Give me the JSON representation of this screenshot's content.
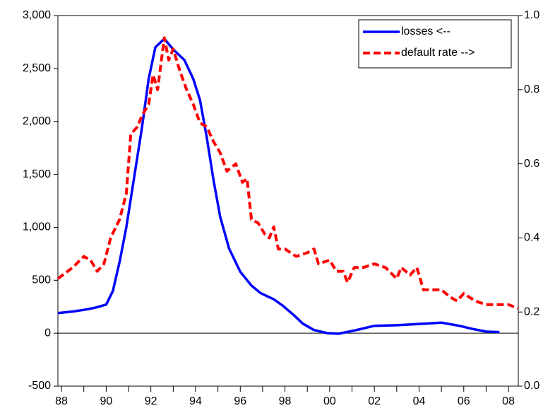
{
  "chart_data": {
    "type": "line",
    "xlim": [
      1987.84,
      2008.44
    ],
    "xticks": [
      {
        "value": 1988,
        "label": "88"
      },
      {
        "value": 1990,
        "label": "90"
      },
      {
        "value": 1992,
        "label": "92"
      },
      {
        "value": 1994,
        "label": "94"
      },
      {
        "value": 1996,
        "label": "96"
      },
      {
        "value": 1998,
        "label": "98"
      },
      {
        "value": 2000,
        "label": "00"
      },
      {
        "value": 2002,
        "label": "02"
      },
      {
        "value": 2004,
        "label": "04"
      },
      {
        "value": 2006,
        "label": "06"
      },
      {
        "value": 2008,
        "label": "08"
      }
    ],
    "xminorticks": [
      1989,
      1991,
      1993,
      1995,
      1997,
      1999,
      2001,
      2003,
      2005,
      2007
    ],
    "ylim": [
      -500,
      3000
    ],
    "yticks": [
      -500,
      0,
      500,
      {
        "value": 1000,
        "label": "1,000"
      },
      {
        "value": 1500,
        "label": "1,500"
      },
      {
        "value": 2000,
        "label": "2,000"
      },
      {
        "value": 2500,
        "label": "2,500"
      },
      {
        "value": 3000,
        "label": "3,000"
      }
    ],
    "y2lim": [
      0,
      1
    ],
    "y2ticks": [
      {
        "value": 0,
        "label": "0.0"
      },
      0.2,
      0.4,
      0.6,
      0.8,
      {
        "value": 1,
        "label": "1.0"
      }
    ],
    "hlines": [
      0
    ],
    "legend": "upper right",
    "series": [
      {
        "name": "losses <--",
        "color": "#0000ff",
        "dash": false,
        "x": [
          1987.84,
          1988.5,
          1989,
          1989.5,
          1990,
          1990.3,
          1990.6,
          1990.9,
          1991.2,
          1991.6,
          1991.9,
          1992.2,
          1992.6,
          1993,
          1993.5,
          1993.9,
          1994.2,
          1994.5,
          1994.8,
          1995.1,
          1995.5,
          1996,
          1996.5,
          1996.9,
          1997.5,
          1997.9,
          1998.4,
          1998.8,
          1999.3,
          1999.9,
          2000.4,
          2001.2,
          2002,
          2003,
          2004.2,
          2005,
          2005.8,
          2006.4,
          2007,
          2007.6
        ],
        "values": [
          190,
          205,
          220,
          240,
          270,
          400,
          675,
          1000,
          1400,
          1940,
          2400,
          2700,
          2780,
          2680,
          2580,
          2400,
          2200,
          1850,
          1450,
          1100,
          800,
          580,
          450,
          380,
          320,
          260,
          170,
          90,
          30,
          0,
          -5,
          30,
          70,
          75,
          90,
          100,
          70,
          40,
          15,
          10
        ]
      },
      {
        "name": "default rate -->",
        "color": "#ff0000",
        "dash": true,
        "axis": "y2",
        "x": [
          1987.84,
          1988.5,
          1989,
          1989.3,
          1989.6,
          1989.9,
          1990.2,
          1990.6,
          1990.9,
          1991.1,
          1991.4,
          1991.6,
          1991.9,
          1992.1,
          1992.3,
          1992.6,
          1992.8,
          1993,
          1993.3,
          1993.6,
          1993.9,
          1994.2,
          1994.5,
          1994.8,
          1995.1,
          1995.4,
          1995.8,
          1996.1,
          1996.3,
          1996.5,
          1996.8,
          1997.1,
          1997.3,
          1997.5,
          1997.7,
          1998,
          1998.5,
          1999,
          1999.3,
          1999.5,
          2000,
          2000.3,
          2000.6,
          2000.8,
          2001.1,
          2001.5,
          2002,
          2002.5,
          2003,
          2003.2,
          2003.6,
          2003.9,
          2004.2,
          2004.5,
          2005,
          2005.4,
          2005.7,
          2006,
          2006.5,
          2007,
          2007.5,
          2008,
          2008.44
        ],
        "values": [
          0.29,
          0.32,
          0.35,
          0.34,
          0.31,
          0.33,
          0.4,
          0.45,
          0.52,
          0.68,
          0.7,
          0.73,
          0.76,
          0.84,
          0.8,
          0.94,
          0.88,
          0.91,
          0.85,
          0.8,
          0.76,
          0.71,
          0.7,
          0.66,
          0.63,
          0.58,
          0.6,
          0.55,
          0.56,
          0.45,
          0.44,
          0.41,
          0.4,
          0.43,
          0.37,
          0.37,
          0.35,
          0.36,
          0.37,
          0.33,
          0.34,
          0.31,
          0.31,
          0.28,
          0.32,
          0.32,
          0.33,
          0.32,
          0.29,
          0.32,
          0.3,
          0.32,
          0.26,
          0.26,
          0.26,
          0.24,
          0.23,
          0.25,
          0.23,
          0.22,
          0.22,
          0.22,
          0.21
        ]
      }
    ]
  }
}
